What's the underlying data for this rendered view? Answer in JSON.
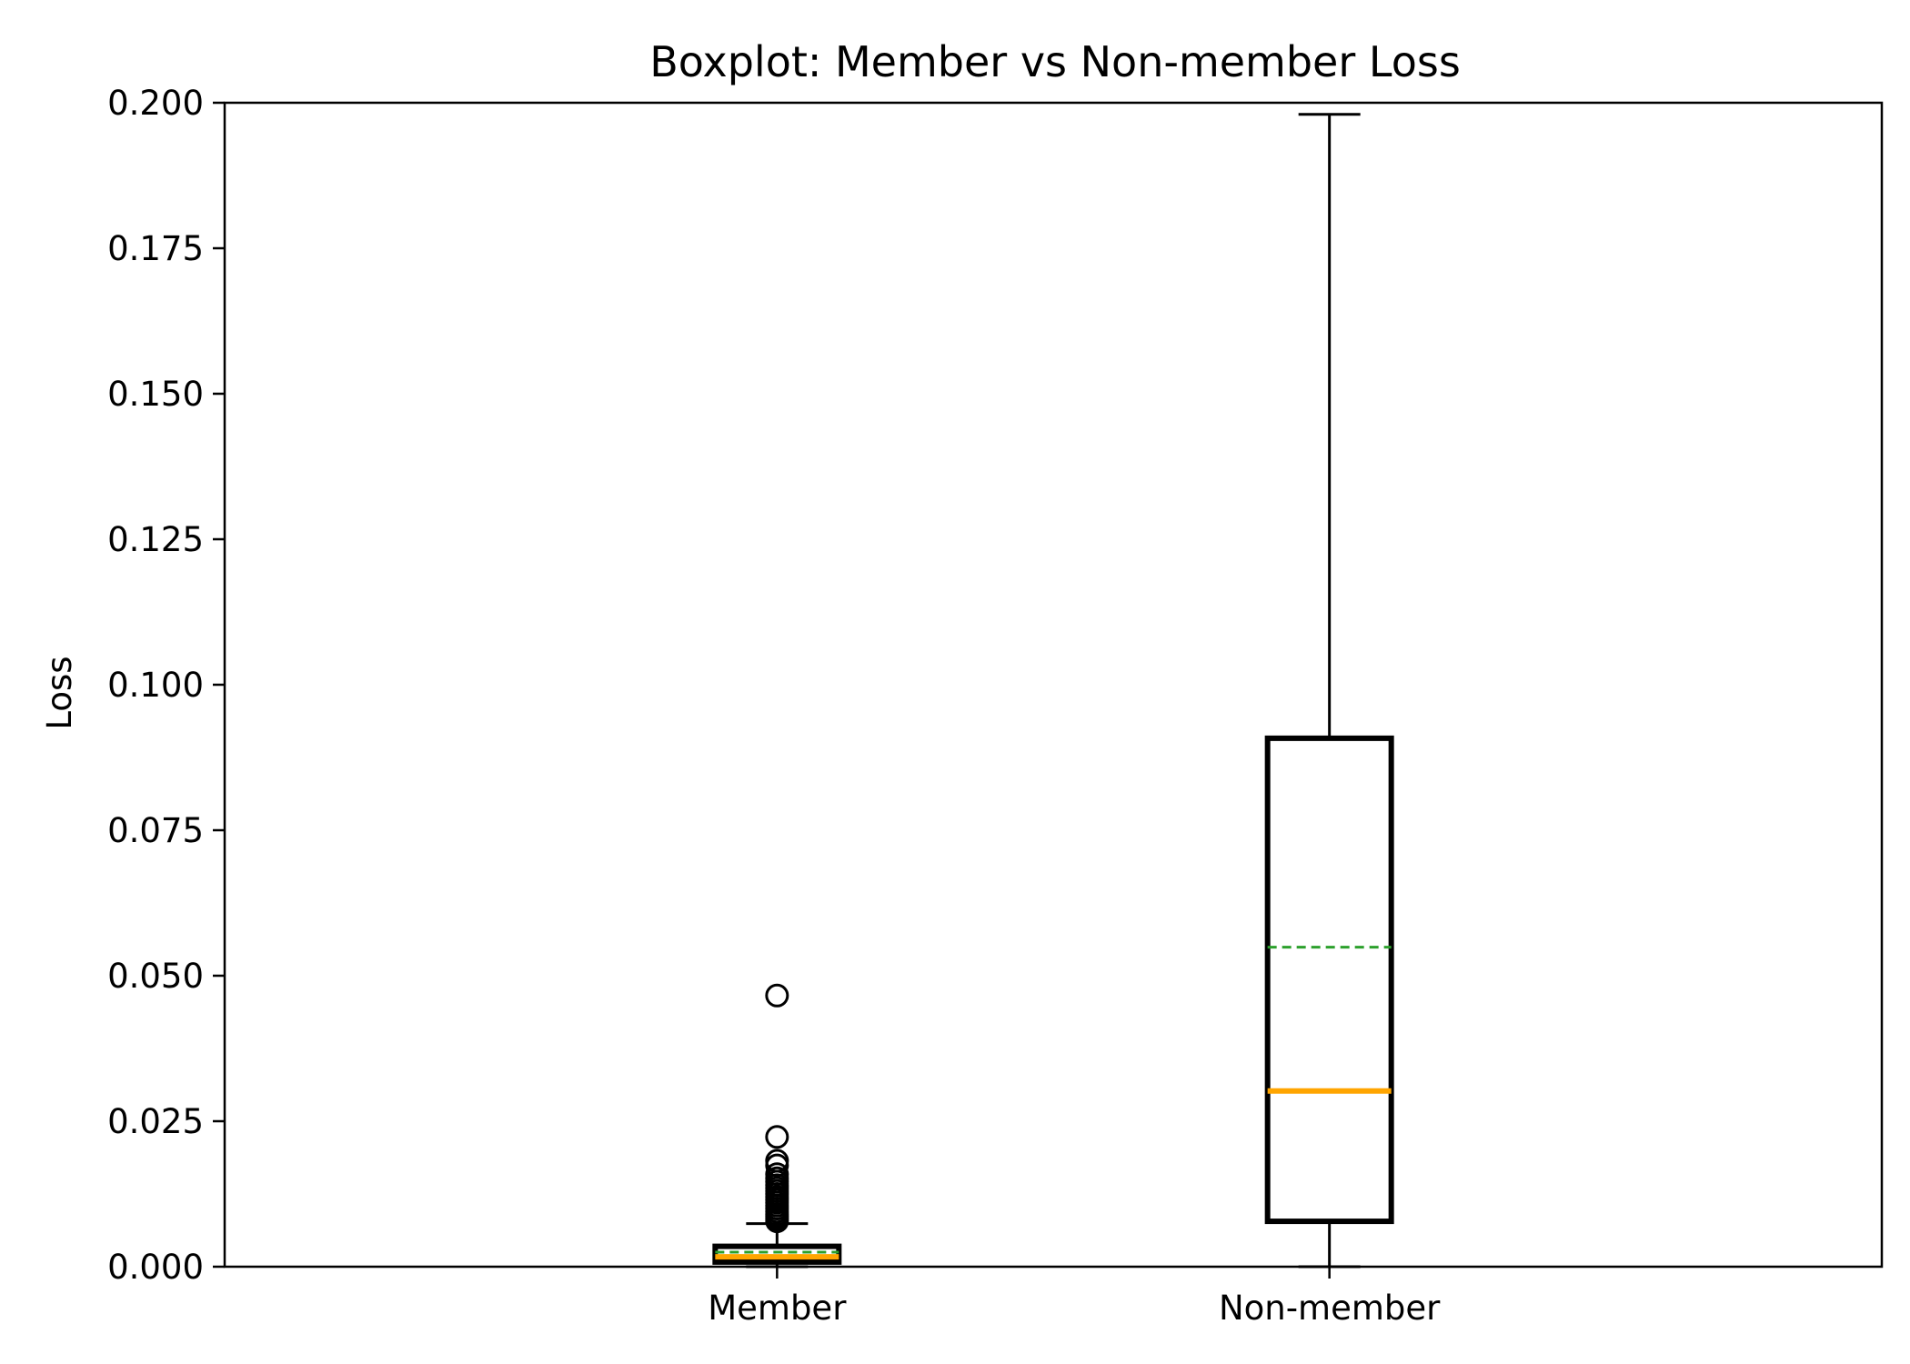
{
  "chart_data": {
    "type": "boxplot",
    "title": "Boxplot: Member vs Non-member Loss",
    "xlabel": "",
    "ylabel": "Loss",
    "ylim": [
      0.0,
      0.2
    ],
    "yticks": [
      0.0,
      0.025,
      0.05,
      0.075,
      0.1,
      0.125,
      0.15,
      0.175,
      0.2
    ],
    "ytick_labels": [
      "0.000",
      "0.025",
      "0.050",
      "0.075",
      "0.100",
      "0.125",
      "0.150",
      "0.175",
      "0.200"
    ],
    "categories": [
      "Member",
      "Non-member"
    ],
    "boxes": [
      {
        "category": "Member",
        "whisker_low": 0.0,
        "q1": 0.0008,
        "median": 0.0017,
        "mean": 0.0025,
        "q3": 0.0035,
        "whisker_high": 0.0074,
        "outliers": [
          0.0466,
          0.0223,
          0.0182,
          0.0174,
          0.0159,
          0.0152,
          0.0146,
          0.014,
          0.0135,
          0.013,
          0.0125,
          0.012,
          0.0115,
          0.011,
          0.0105,
          0.01,
          0.0095,
          0.009,
          0.0086,
          0.0082,
          0.0078
        ]
      },
      {
        "category": "Non-member",
        "whisker_low": 0.0,
        "q1": 0.0078,
        "median": 0.0302,
        "mean": 0.0549,
        "q3": 0.0908,
        "whisker_high": 0.198,
        "outliers": []
      }
    ],
    "colors": {
      "box": "#000000",
      "median": "#ffa500",
      "mean": "#2ca02c",
      "whisker": "#000000"
    },
    "grid": false,
    "legend": "none"
  }
}
